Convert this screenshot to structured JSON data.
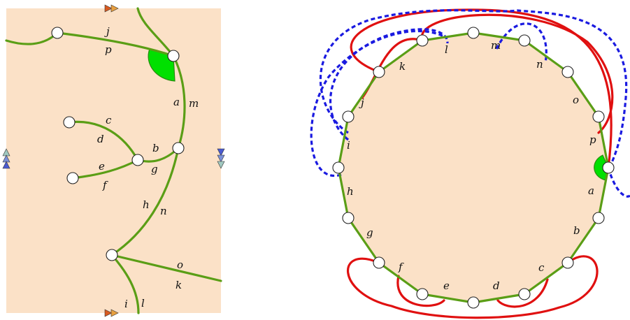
{
  "left_panel": {
    "labels": [
      "j",
      "p",
      "a",
      "m",
      "c",
      "d",
      "b",
      "g",
      "e",
      "f",
      "h",
      "n",
      "o",
      "k",
      "i",
      "l"
    ]
  },
  "right_panel": {
    "vertex_labels": [
      "l",
      "m",
      "k",
      "n",
      "j",
      "o",
      "p",
      "i",
      "h",
      "a",
      "g",
      "b",
      "f",
      "c",
      "e",
      "d"
    ]
  },
  "colors": {
    "background": "#fbe1c7",
    "edge": "#5a9e16",
    "face_marker": "#00e000",
    "red_curve": "#e01010",
    "blue_curve": "#1a1ae0"
  }
}
